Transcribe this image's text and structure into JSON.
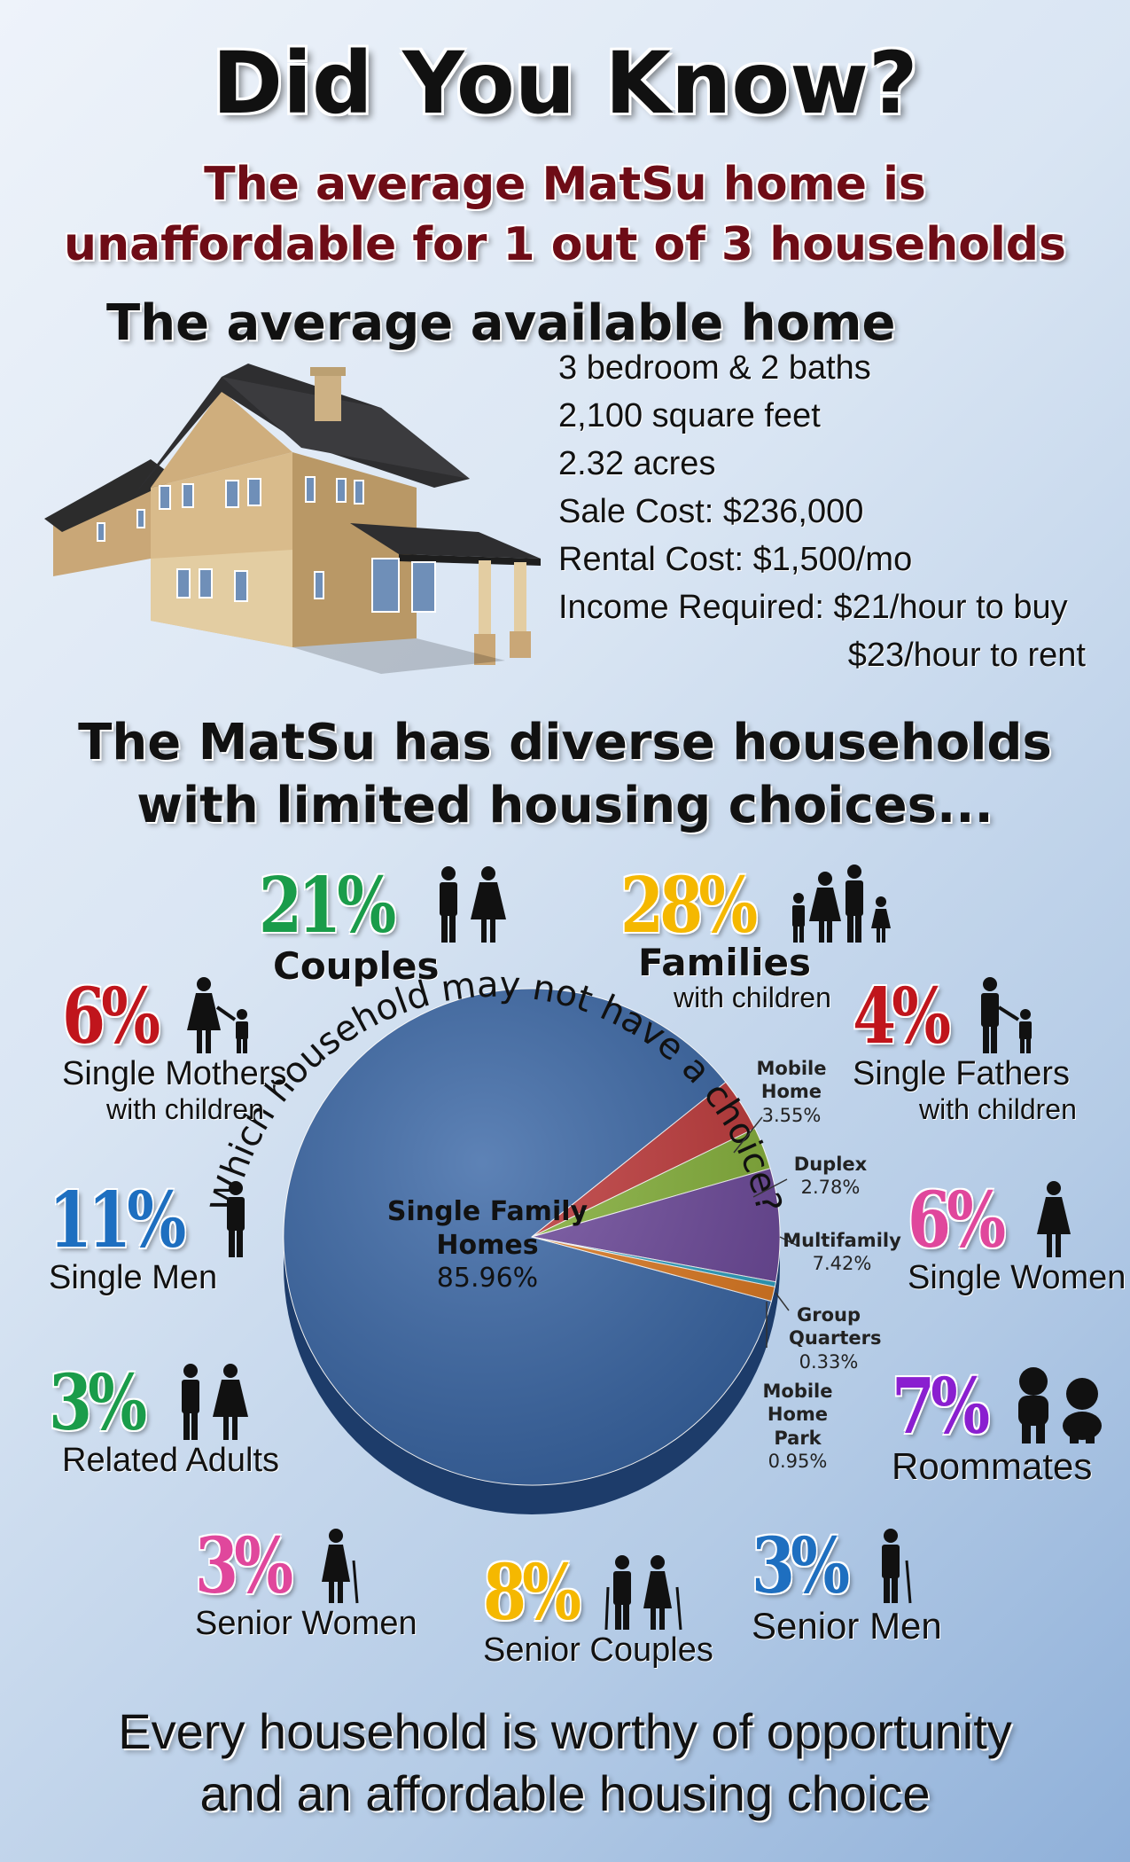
{
  "header": {
    "title": "Did You Know?",
    "subtitle_line1": "The average MatSu home is",
    "subtitle_line2": "unaffordable for 1 out of 3 households"
  },
  "home": {
    "heading": "The average available home",
    "specs": [
      "3 bedroom & 2 baths",
      "2,100 square feet",
      "2.32 acres",
      "Sale Cost: $236,000",
      "Rental Cost: $1,500/mo",
      "Income Required: $21/hour to buy",
      "$23/hour to rent"
    ]
  },
  "households": {
    "heading_line1": "The MatSu has diverse households",
    "heading_line2": "with limited housing choices...",
    "items": [
      {
        "pct": "21%",
        "label": "Couples",
        "color": "#1a9c4a"
      },
      {
        "pct": "28%",
        "label": "Families",
        "sublabel": "with children",
        "color": "#f5b800"
      },
      {
        "pct": "6%",
        "label": "Single Mothers",
        "sublabel": "with children",
        "color": "#c0151c"
      },
      {
        "pct": "4%",
        "label": "Single Fathers",
        "sublabel": "with children",
        "color": "#c0151c"
      },
      {
        "pct": "11%",
        "label": "Single Men",
        "color": "#1e6fc0"
      },
      {
        "pct": "6%",
        "label": "Single Women",
        "color": "#e0479c"
      },
      {
        "pct": "3%",
        "label": "Related Adults",
        "color": "#1a9c4a"
      },
      {
        "pct": "7%",
        "label": "Roommates",
        "color": "#8a1fd0"
      },
      {
        "pct": "3%",
        "label": "Senior Women",
        "color": "#e0479c"
      },
      {
        "pct": "8%",
        "label": "Senior Couples",
        "color": "#f5b800"
      },
      {
        "pct": "3%",
        "label": "Senior Men",
        "color": "#1e6fc0"
      }
    ],
    "arc_text": "Which household may not have a choice?"
  },
  "chart_data": {
    "type": "pie",
    "slices": [
      {
        "name": "Single Family Homes",
        "value": 85.96,
        "label": "85.96%",
        "color": "#3a67a6"
      },
      {
        "name": "Mobile Home",
        "value": 3.55,
        "label": "3.55%",
        "color": "#c0393a"
      },
      {
        "name": "Duplex",
        "value": 2.78,
        "label": "2.78%",
        "color": "#86b23a"
      },
      {
        "name": "Multifamily",
        "value": 7.42,
        "label": "7.42%",
        "color": "#6e4a9c"
      },
      {
        "name": "Group Quarters",
        "value": 0.33,
        "label": "0.33%",
        "color": "#2fa4c4"
      },
      {
        "name": "Mobile Home Park",
        "value": 0.95,
        "label": "0.95%",
        "color": "#e07b22"
      }
    ]
  },
  "footer": {
    "line1": "Every household  is worthy of opportunity",
    "line2": "and an affordable housing choice"
  }
}
